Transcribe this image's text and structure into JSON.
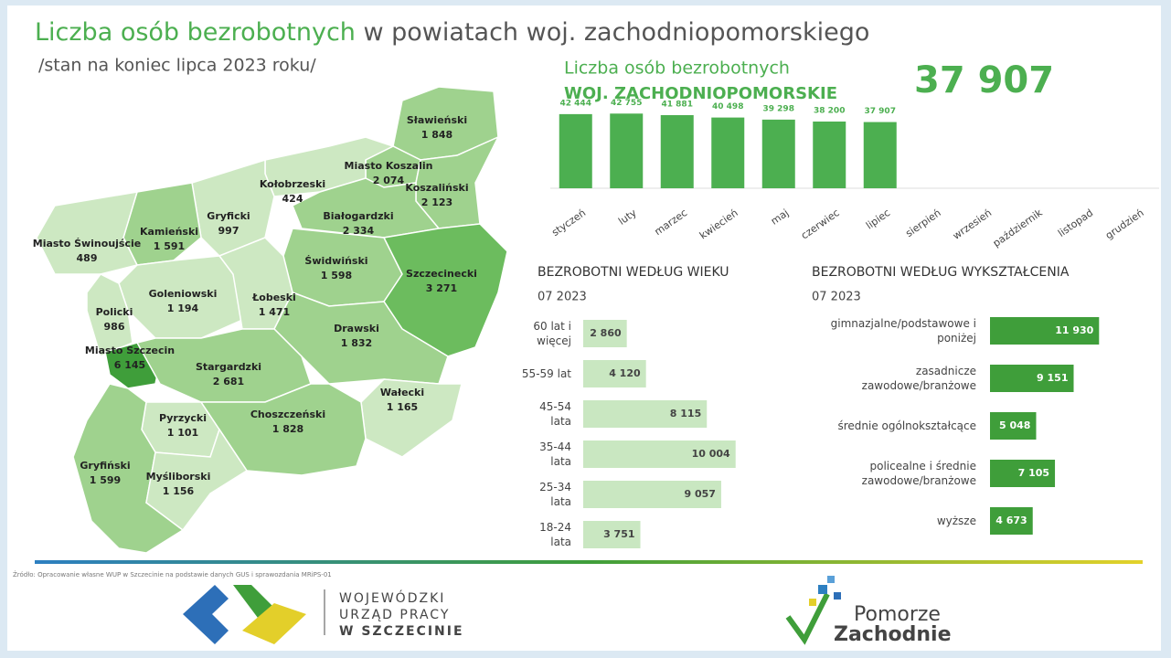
{
  "title": {
    "highlight": "Liczba osób bezrobotnych",
    "rest": " w powiatach woj. zachodniopomorskiego"
  },
  "subtitle": "/stan na koniec lipca 2023 roku/",
  "map": {
    "regions": [
      {
        "name": "Sławieński",
        "value": 1848,
        "value_label": "1 848",
        "color": "#9fd28e"
      },
      {
        "name": "Miasto Koszalin",
        "value": 2074,
        "value_label": "2 074",
        "color": "#9fd28e"
      },
      {
        "name": "Koszaliński",
        "value": 2123,
        "value_label": "2 123",
        "color": "#9fd28e"
      },
      {
        "name": "Kołobrzeski",
        "value": 424,
        "value_label": "424",
        "color": "#cde8c2"
      },
      {
        "name": "Gryficki",
        "value": 997,
        "value_label": "997",
        "color": "#cde8c2"
      },
      {
        "name": "Białogardzki",
        "value": 2334,
        "value_label": "2 334",
        "color": "#9fd28e"
      },
      {
        "name": "Kamieński",
        "value": 1591,
        "value_label": "1 591",
        "color": "#9fd28e"
      },
      {
        "name": "Miasto Świnoujście",
        "value": 489,
        "value_label": "489",
        "color": "#cde8c2"
      },
      {
        "name": "Świdwiński",
        "value": 1598,
        "value_label": "1 598",
        "color": "#9fd28e"
      },
      {
        "name": "Szczecinecki",
        "value": 3271,
        "value_label": "3 271",
        "color": "#6cbc5e"
      },
      {
        "name": "Goleniowski",
        "value": 1194,
        "value_label": "1 194",
        "color": "#cde8c2"
      },
      {
        "name": "Łobeski",
        "value": 1471,
        "value_label": "1 471",
        "color": "#cde8c2"
      },
      {
        "name": "Policki",
        "value": 986,
        "value_label": "986",
        "color": "#cde8c2"
      },
      {
        "name": "Miasto Szczecin",
        "value": 6145,
        "value_label": "6 145",
        "color": "#3f9e3a"
      },
      {
        "name": "Drawski",
        "value": 1832,
        "value_label": "1 832",
        "color": "#9fd28e"
      },
      {
        "name": "Stargardzki",
        "value": 2681,
        "value_label": "2 681",
        "color": "#9fd28e"
      },
      {
        "name": "Wałecki",
        "value": 1165,
        "value_label": "1 165",
        "color": "#cde8c2"
      },
      {
        "name": "Pyrzycki",
        "value": 1101,
        "value_label": "1 101",
        "color": "#cde8c2"
      },
      {
        "name": "Choszczeński",
        "value": 1828,
        "value_label": "1 828",
        "color": "#9fd28e"
      },
      {
        "name": "Gryfiński",
        "value": 1599,
        "value_label": "1 599",
        "color": "#9fd28e"
      },
      {
        "name": "Myśliborski",
        "value": 1156,
        "value_label": "1 156",
        "color": "#cde8c2"
      }
    ]
  },
  "chart_data": [
    {
      "type": "bar",
      "title": "Liczba osób bezrobotnych",
      "subtitle": "WOJ. ZACHODNIOPOMORSKIE",
      "headline": "37 907",
      "categories": [
        "styczeń",
        "luty",
        "marzec",
        "kwiecień",
        "maj",
        "czerwiec",
        "lipiec",
        "sierpień",
        "wrzesień",
        "październik",
        "listopad",
        "grudzień"
      ],
      "values": [
        42444,
        42755,
        41881,
        40498,
        39298,
        38200,
        37907,
        null,
        null,
        null,
        null,
        null
      ],
      "value_labels": [
        "42 444",
        "42 755",
        "41 881",
        "40 498",
        "39 298",
        "38 200",
        "37 907",
        null,
        null,
        null,
        null,
        null
      ],
      "color": "#4caf50",
      "ylim": [
        0,
        45000
      ]
    },
    {
      "type": "hbar",
      "title": "BEZROBOTNI WEDŁUG WIEKU",
      "subtitle": "07 2023",
      "categories": [
        "60 lat i więcej",
        "55-59 lat",
        "45-54 lata",
        "35-44 lata",
        "25-34 lata",
        "18-24 lata"
      ],
      "values": [
        2860,
        4120,
        8115,
        10004,
        9057,
        3751
      ],
      "value_labels": [
        "2 860",
        "4 120",
        "8 115",
        "10 004",
        "9 057",
        "3 751"
      ],
      "color": "#c9e7c1",
      "xlim": [
        0,
        12000
      ]
    },
    {
      "type": "hbar",
      "title": "BEZROBOTNI WEDŁUG WYKSZTAŁCENIA",
      "subtitle": "07 2023",
      "categories": [
        "gimnazjalne/podstawowe i poniżej",
        "zasadnicze zawodowe/branżowe",
        "średnie ogólnokształcące",
        "policealne i średnie zawodowe/branżowe",
        "wyższe"
      ],
      "values": [
        11930,
        9151,
        5048,
        7105,
        4673
      ],
      "value_labels": [
        "11 930",
        "9 151",
        "5 048",
        "7 105",
        "4 673"
      ],
      "color": "#3f9e3a",
      "xlim": [
        0,
        14000
      ]
    }
  ],
  "source": "Źródło: Opracowanie własne WUP w Szczecinie na podstawie danych GUS i sprawozdania MRiPS-01",
  "footer": {
    "wup": [
      "WOJEWÓDZKI",
      "URZĄD PRACY",
      "W SZCZECINIE"
    ],
    "brand": [
      "Pomorze",
      "Zachodnie"
    ]
  }
}
